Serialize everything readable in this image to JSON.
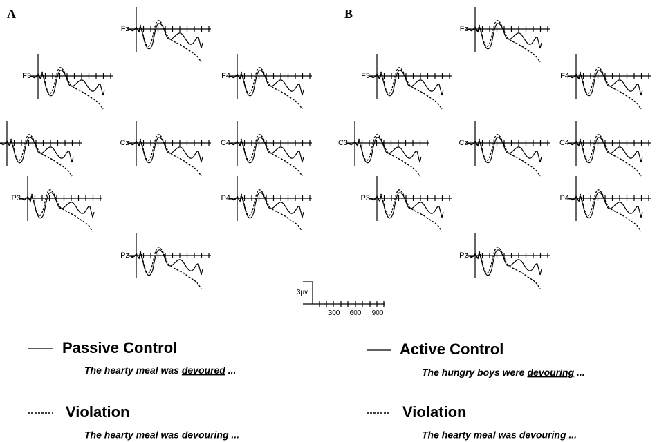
{
  "panels": [
    "A",
    "B"
  ],
  "electrodes": [
    "Fz",
    "F3",
    "F4",
    "C3",
    "Cz",
    "C4",
    "P3",
    "P4",
    "Pz"
  ],
  "scale": {
    "amplitude": "3μv",
    "times": [
      "300",
      "600",
      "900"
    ]
  },
  "legend": [
    {
      "name": "Passive Control",
      "sentence": [
        "The hearty meal was ",
        "devoured",
        " ..."
      ]
    },
    {
      "name": "Violation",
      "sentence": "The hearty meal was devouring ..."
    },
    {
      "name": "Active Control",
      "sentence": [
        "The hungry boys were ",
        "devouring",
        " ..."
      ]
    },
    {
      "name": "Violation",
      "sentence": "The hearty meal was devouring ..."
    }
  ]
}
